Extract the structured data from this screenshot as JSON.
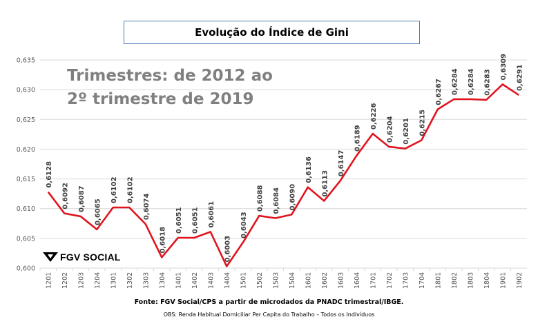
{
  "title": "Evolução do Índice de Gini",
  "subtitle_line1": "Trimestres: de 2012 ao",
  "subtitle_line2": "2º trimestre de 2019",
  "logo_text": "FGV SOCIAL",
  "source": "Fonte: FGV Social/CPS a partir de microdados da PNADC trimestral/IBGE.",
  "obs": "OBS: Renda Habitual Domiciliar Per Capita do Trabalho – Todos os Indivíduos",
  "colors": {
    "line": "#e0141e",
    "grid": "#d9d9d9",
    "title_border": "#4a7ab5",
    "subtitle": "#808080"
  },
  "chart_data": {
    "type": "line",
    "categories": [
      "1201",
      "1202",
      "1203",
      "1204",
      "1301",
      "1302",
      "1303",
      "1304",
      "1401",
      "1402",
      "1403",
      "1404",
      "1501",
      "1502",
      "1503",
      "1504",
      "1601",
      "1602",
      "1603",
      "1604",
      "1701",
      "1702",
      "1703",
      "1704",
      "1801",
      "1802",
      "1803",
      "1804",
      "1901",
      "1902"
    ],
    "values": [
      0.6128,
      0.6092,
      0.6087,
      0.6065,
      0.6102,
      0.6102,
      0.6074,
      0.6018,
      0.6051,
      0.6051,
      0.6061,
      0.6003,
      0.6043,
      0.6088,
      0.6084,
      0.609,
      0.6136,
      0.6113,
      0.6147,
      0.6189,
      0.6226,
      0.6204,
      0.6201,
      0.6215,
      0.6267,
      0.6284,
      0.6284,
      0.6283,
      0.6309,
      0.6291
    ],
    "data_labels": [
      "0,6128",
      "0,6092",
      "0,6087",
      "0,6065",
      "0,6102",
      "0,6102",
      "0,6074",
      "0,6018",
      "0,6051",
      "0,6051",
      "0,6061",
      "0,6003",
      "0,6043",
      "0,6088",
      "0,6084",
      "0,6090",
      "0,6136",
      "0,6113",
      "0,6147",
      "0,6189",
      "0,6226",
      "0,6204",
      "0,6201",
      "0,6215",
      "0,6267",
      "0,6284",
      "0,6284",
      "0,6283",
      "0,6309",
      "0,6291"
    ],
    "ylim": [
      0.6,
      0.635
    ],
    "yticks": [
      0.6,
      0.605,
      0.61,
      0.615,
      0.62,
      0.625,
      0.63,
      0.635
    ],
    "ytick_labels": [
      "0,600",
      "0,605",
      "0,610",
      "0,615",
      "0,620",
      "0,625",
      "0,630",
      "0,635"
    ],
    "grid": true,
    "title": "Evolução do Índice de Gini"
  }
}
